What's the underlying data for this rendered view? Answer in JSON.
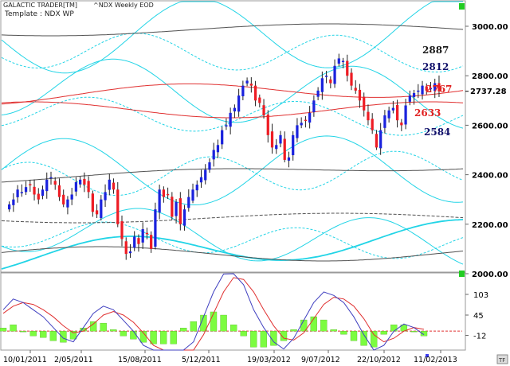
{
  "header": {
    "app_title": "GALACTIC TRADER[TM]",
    "chart_title": "^NDX Weekly EOD",
    "template_label": "Template : NDX WP"
  },
  "colors": {
    "up_candle": "#1a22dd",
    "down_candle": "#ee1c24",
    "cyan_wave": "#22d4e6",
    "red_wave": "#e03030",
    "gray_wave": "#505050",
    "macd_line": "#4040c0",
    "signal_line": "#e03030",
    "histogram": "#7CFC40",
    "status_marker": "#22cc22"
  },
  "chart_data": [
    {
      "type": "candlestick",
      "title": "^NDX Weekly EOD",
      "ylim": [
        2000,
        3100
      ],
      "y_ticks": [
        "3000.00",
        "2800.00",
        "2600.00",
        "2400.00",
        "2200.00",
        "2000.00"
      ],
      "y_tick_values": [
        3000,
        2800,
        2600,
        2400,
        2200,
        2000
      ],
      "x_ticks": [
        "10/01/2011",
        "2/05/2011",
        "15/08/2011",
        "5/12/2011",
        "19/03/2012",
        "9/07/2012",
        "22/10/2012",
        "11/02/2013"
      ],
      "current_price_label": "2737.28",
      "current_price": 2737.28,
      "level_labels": [
        {
          "text": "2887",
          "value": 2887,
          "color": "#1a1a1a"
        },
        {
          "text": "2812",
          "value": 2812,
          "color": "#10106a"
        },
        {
          "text": "2767",
          "value": 2767,
          "color": "#e02020"
        },
        {
          "text": "2633",
          "value": 2633,
          "color": "#e02020"
        },
        {
          "text": "2584",
          "value": 2584,
          "color": "#10106a"
        }
      ],
      "approx_closes": [
        2280,
        2300,
        2340,
        2330,
        2350,
        2360,
        2320,
        2300,
        2340,
        2380,
        2390,
        2360,
        2310,
        2280,
        2300,
        2320,
        2370,
        2380,
        2360,
        2330,
        2250,
        2240,
        2300,
        2330,
        2380,
        2340,
        2200,
        2140,
        2080,
        2090,
        2150,
        2120,
        2180,
        2160,
        2100,
        2260,
        2340,
        2310,
        2320,
        2230,
        2290,
        2200,
        2260,
        2310,
        2340,
        2360,
        2390,
        2420,
        2450,
        2500,
        2520,
        2580,
        2600,
        2650,
        2670,
        2720,
        2760,
        2780,
        2760,
        2700,
        2690,
        2640,
        2560,
        2510,
        2520,
        2560,
        2460,
        2470,
        2560,
        2600,
        2610,
        2620,
        2650,
        2700,
        2740,
        2790,
        2800,
        2770,
        2840,
        2870,
        2860,
        2800,
        2760,
        2740,
        2700,
        2660,
        2620,
        2580,
        2510,
        2580,
        2640,
        2660,
        2670,
        2620,
        2600,
        2680,
        2720,
        2730,
        2740,
        2760,
        2740,
        2750,
        2770,
        2737
      ]
    },
    {
      "type": "line",
      "title": "",
      "series": [
        {
          "values": [
            60,
            90,
            80,
            60,
            40,
            10,
            -20,
            -30,
            10,
            50,
            70,
            60,
            30,
            0,
            -40,
            -80,
            -120,
            -150,
            -90,
            -30,
            40,
            110,
            160,
            170,
            130,
            60,
            10,
            -30,
            -50,
            -20,
            30,
            80,
            110,
            100,
            80,
            40,
            -10,
            -60,
            -40,
            0,
            20,
            10,
            -10
          ]
        },
        {
          "values": [
            50,
            70,
            80,
            75,
            60,
            40,
            15,
            -5,
            0,
            20,
            45,
            55,
            45,
            25,
            -5,
            -40,
            -80,
            -110,
            -100,
            -60,
            -10,
            50,
            110,
            150,
            145,
            110,
            60,
            15,
            -20,
            -25,
            -5,
            35,
            75,
            95,
            90,
            70,
            35,
            -10,
            -30,
            -20,
            0,
            10,
            5
          ]
        }
      ],
      "y_ticks": [
        "103",
        "45",
        "-12"
      ],
      "y_tick_values": [
        103,
        45,
        -12
      ]
    }
  ]
}
